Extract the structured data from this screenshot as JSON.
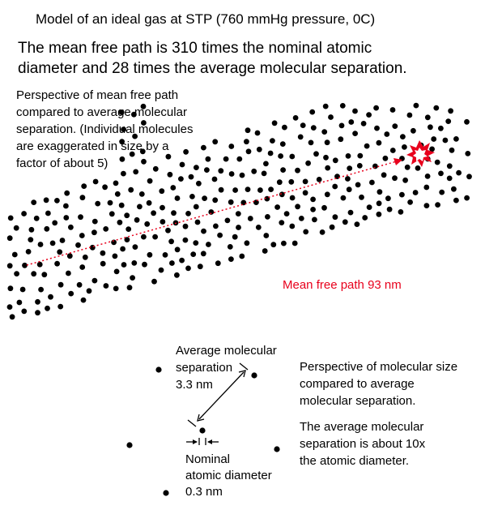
{
  "title": "Model of an ideal gas at STP (760 mmHg pressure, 0C)",
  "headline": "The mean free path is 310 times the nominal atomic\ndiameter and 28 times the average molecular separation.",
  "perspective_note": "Perspective of mean free path\ncompared to average molecular\nseparation. (Individual molecules\nare exaggerated in size by a\nfactor of about 5)",
  "mean_free_path_label": "Mean free path 93 nm",
  "separation_label": "Average molecular\nseparation\n3.3 nm",
  "diameter_label": "Nominal\natomic diameter\n0.3 nm",
  "size_note": "Perspective of molecular size\ncompared to average\nmolecular separation.",
  "ratio_note": "The average molecular\nseparation is about 10x\nthe atomic diameter.",
  "colors": {
    "molecule": "#000000",
    "path": "#e8001c",
    "text": "#000000"
  }
}
